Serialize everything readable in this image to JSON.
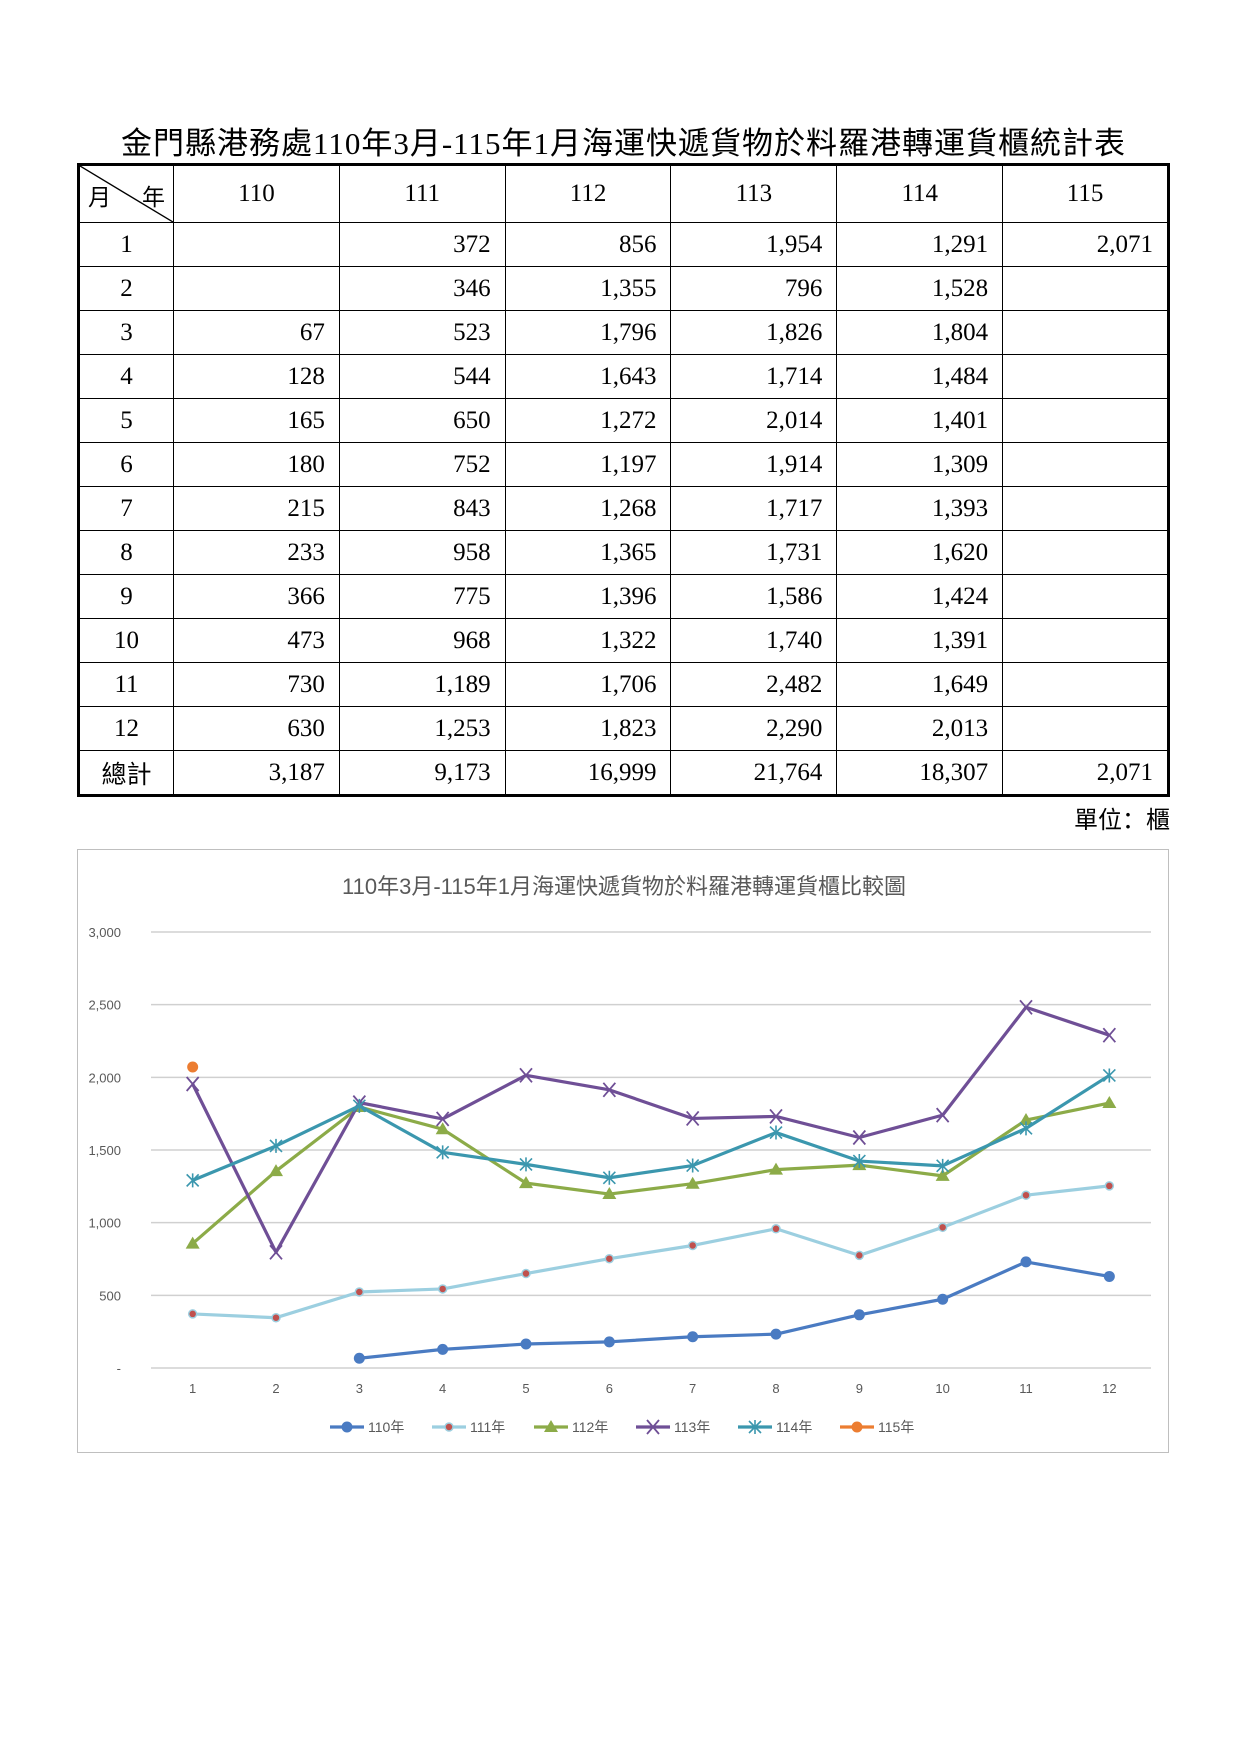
{
  "title": "金門縣港務處110年3月-115年1月海運快遞貨物於料羅港轉運貨櫃統計表",
  "table": {
    "corner_month": "月",
    "corner_year": "年",
    "columns": [
      "110",
      "111",
      "112",
      "113",
      "114",
      "115"
    ],
    "rows": [
      [
        "1",
        "",
        "372",
        "856",
        "1,954",
        "1,291",
        "2,071"
      ],
      [
        "2",
        "",
        "346",
        "1,355",
        "796",
        "1,528",
        ""
      ],
      [
        "3",
        "67",
        "523",
        "1,796",
        "1,826",
        "1,804",
        ""
      ],
      [
        "4",
        "128",
        "544",
        "1,643",
        "1,714",
        "1,484",
        ""
      ],
      [
        "5",
        "165",
        "650",
        "1,272",
        "2,014",
        "1,401",
        ""
      ],
      [
        "6",
        "180",
        "752",
        "1,197",
        "1,914",
        "1,309",
        ""
      ],
      [
        "7",
        "215",
        "843",
        "1,268",
        "1,717",
        "1,393",
        ""
      ],
      [
        "8",
        "233",
        "958",
        "1,365",
        "1,731",
        "1,620",
        ""
      ],
      [
        "9",
        "366",
        "775",
        "1,396",
        "1,586",
        "1,424",
        ""
      ],
      [
        "10",
        "473",
        "968",
        "1,322",
        "1,740",
        "1,391",
        ""
      ],
      [
        "11",
        "730",
        "1,189",
        "1,706",
        "2,482",
        "1,649",
        ""
      ],
      [
        "12",
        "630",
        "1,253",
        "1,823",
        "2,290",
        "2,013",
        ""
      ],
      [
        "總計",
        "3,187",
        "9,173",
        "16,999",
        "21,764",
        "18,307",
        "2,071"
      ]
    ]
  },
  "unit": "單位：櫃",
  "chart_data": {
    "type": "line",
    "title": "110年3月-115年1月海運快遞貨物於料羅港轉運貨櫃比較圖",
    "categories": [
      "1",
      "2",
      "3",
      "4",
      "5",
      "6",
      "7",
      "8",
      "9",
      "10",
      "11",
      "12"
    ],
    "ylim": [
      0,
      3000
    ],
    "yticks": [
      0,
      500,
      1000,
      1500,
      2000,
      2500,
      3000
    ],
    "ytick_labels": [
      "-",
      "500",
      "1,000",
      "1,500",
      "2,000",
      "2,500",
      "3,000"
    ],
    "grid": true,
    "legend": "bottom",
    "series": [
      {
        "name": "110年",
        "color": "#4a7bc2",
        "marker": "circle",
        "values": [
          null,
          null,
          67,
          128,
          165,
          180,
          215,
          233,
          366,
          473,
          730,
          630
        ]
      },
      {
        "name": "111年",
        "color": "#9ccfe0",
        "marker": "dot-red",
        "values": [
          372,
          346,
          523,
          544,
          650,
          752,
          843,
          958,
          775,
          968,
          1189,
          1253
        ]
      },
      {
        "name": "112年",
        "color": "#8cab48",
        "marker": "triangle",
        "values": [
          856,
          1355,
          1796,
          1643,
          1272,
          1197,
          1268,
          1365,
          1396,
          1322,
          1706,
          1823
        ]
      },
      {
        "name": "113年",
        "color": "#6f4f96",
        "marker": "x",
        "values": [
          1954,
          796,
          1826,
          1714,
          2014,
          1914,
          1717,
          1731,
          1586,
          1740,
          2482,
          2290
        ]
      },
      {
        "name": "114年",
        "color": "#3b97ae",
        "marker": "asterisk",
        "values": [
          1291,
          1528,
          1804,
          1484,
          1401,
          1309,
          1393,
          1620,
          1424,
          1391,
          1649,
          2013
        ]
      },
      {
        "name": "115年",
        "color": "#ec7d31",
        "marker": "circle",
        "values": [
          2071,
          null,
          null,
          null,
          null,
          null,
          null,
          null,
          null,
          null,
          null,
          null
        ]
      }
    ]
  }
}
